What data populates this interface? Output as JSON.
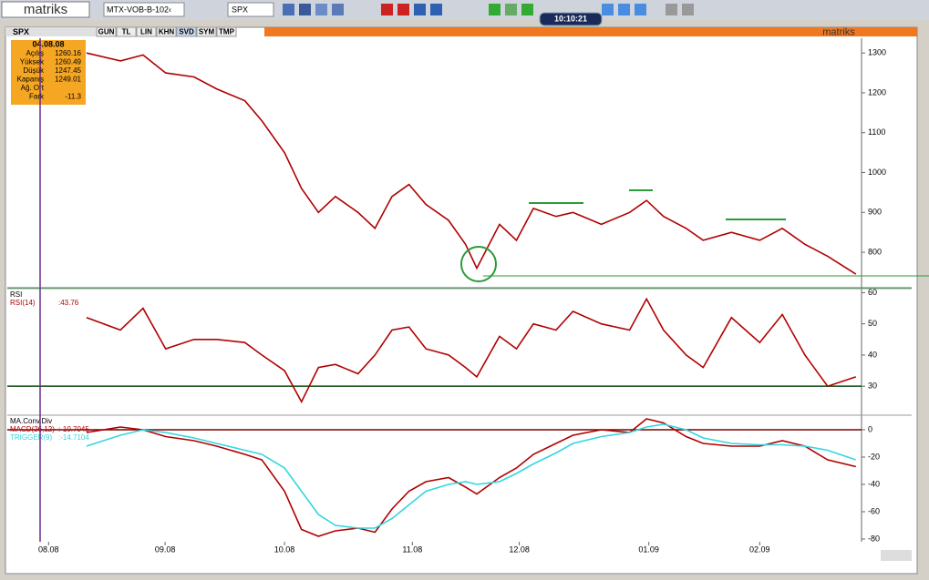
{
  "toolbar": {
    "logo": "matriks",
    "symbol_list": "MTX-VOB-B-102‹",
    "symbol": "SPX",
    "clock": "10:10:21"
  },
  "tabs": {
    "symbol": "SPX",
    "buttons": [
      "GUN",
      "TL",
      "LIN",
      "KHN",
      "SVD",
      "SYM",
      "TMP"
    ],
    "brand": "matriks"
  },
  "info_box": {
    "date": "04.08.08",
    "rows": [
      [
        "Açılış",
        "1260.16"
      ],
      [
        "Yüksek",
        "1260.49"
      ],
      [
        "Düşük",
        "1247.45"
      ],
      [
        "Kapanış",
        "1249.01"
      ],
      [
        "Ağ. Ort",
        ""
      ],
      [
        "Fark",
        "-11.3"
      ]
    ]
  },
  "chart_data": [
    {
      "type": "line",
      "xlim": [
        0,
        151
      ],
      "ylim": [
        711,
        1337
      ],
      "yticks": [
        800,
        900,
        1000,
        1100,
        1200,
        1300
      ],
      "x": [
        14,
        20,
        24,
        28,
        33,
        37,
        42,
        45,
        49,
        52,
        55,
        58,
        62,
        65,
        68,
        71,
        74,
        78,
        81,
        83,
        87,
        90,
        93,
        97,
        100,
        105,
        110,
        113,
        116,
        120,
        123,
        128,
        133,
        137,
        141,
        145,
        150
      ],
      "series": [
        {
          "name": "SPX",
          "color": "#b00000",
          "values": [
            1300,
            1280,
            1295,
            1250,
            1240,
            1210,
            1180,
            1130,
            1050,
            960,
            900,
            940,
            900,
            860,
            940,
            970,
            920,
            880,
            820,
            760,
            870,
            830,
            910,
            890,
            900,
            870,
            900,
            930,
            890,
            860,
            830,
            850,
            830,
            860,
            820,
            790,
            745
          ]
        }
      ]
    },
    {
      "type": "line",
      "title": "RSI",
      "xlim": [
        0,
        151
      ],
      "ylim": [
        21,
        61
      ],
      "yticks": [
        30,
        40,
        50,
        60
      ],
      "ref_line": 30,
      "x": [
        14,
        20,
        24,
        28,
        33,
        37,
        42,
        45,
        49,
        52,
        55,
        58,
        62,
        65,
        68,
        71,
        74,
        78,
        81,
        83,
        87,
        90,
        93,
        97,
        100,
        105,
        110,
        113,
        116,
        120,
        123,
        128,
        133,
        137,
        141,
        145,
        150
      ],
      "series": [
        {
          "name": "RSI(14)",
          "readout": ":43.76",
          "color": "#b00000",
          "values": [
            52,
            48,
            55,
            42,
            45,
            45,
            44,
            40,
            35,
            25,
            36,
            37,
            34,
            40,
            48,
            49,
            42,
            40,
            36,
            33,
            46,
            42,
            50,
            48,
            54,
            50,
            48,
            58,
            48,
            40,
            36,
            52,
            44,
            53,
            40,
            30,
            33
          ]
        }
      ]
    },
    {
      "type": "line",
      "title": "MA.Conv.Div",
      "xlim": [
        0,
        151
      ],
      "ylim": [
        -82,
        10
      ],
      "yticks": [
        0,
        -20,
        -40,
        -60,
        -80
      ],
      "ref_line": 0,
      "xticks": [
        {
          "value": 7.3,
          "label": "08.08"
        },
        {
          "value": 27.9,
          "label": "09.08"
        },
        {
          "value": 49,
          "label": "10.08"
        },
        {
          "value": 71.6,
          "label": "11.08"
        },
        {
          "value": 90.5,
          "label": "12.08"
        },
        {
          "value": 113.4,
          "label": "01.09"
        },
        {
          "value": 133,
          "label": "02.09"
        }
      ],
      "x": [
        14,
        20,
        24,
        28,
        33,
        37,
        42,
        45,
        49,
        52,
        55,
        58,
        62,
        65,
        68,
        71,
        74,
        78,
        81,
        83,
        87,
        90,
        93,
        97,
        100,
        105,
        110,
        113,
        116,
        120,
        123,
        128,
        133,
        137,
        141,
        145,
        150
      ],
      "series": [
        {
          "name": "MACD(26,12)",
          "readout": ":-10.7045",
          "color": "#b00000",
          "values": [
            -2,
            2,
            0,
            -5,
            -8,
            -12,
            -18,
            -22,
            -45,
            -73,
            -78,
            -74,
            -72,
            -75,
            -58,
            -45,
            -38,
            -35,
            -42,
            -47,
            -35,
            -28,
            -18,
            -10,
            -4,
            0,
            -2,
            8,
            5,
            -5,
            -10,
            -12,
            -12,
            -8,
            -12,
            -22,
            -27
          ]
        },
        {
          "name": "TRIGGER(9)",
          "readout": ":-14.7104",
          "color": "#33d6e0",
          "values": [
            -12,
            -4,
            0,
            -2,
            -6,
            -10,
            -15,
            -18,
            -28,
            -45,
            -62,
            -70,
            -72,
            -72,
            -65,
            -55,
            -45,
            -40,
            -38,
            -40,
            -38,
            -32,
            -25,
            -17,
            -10,
            -5,
            -2,
            2,
            4,
            0,
            -6,
            -10,
            -11,
            -11,
            -12,
            -15,
            -22
          ]
        }
      ]
    }
  ]
}
